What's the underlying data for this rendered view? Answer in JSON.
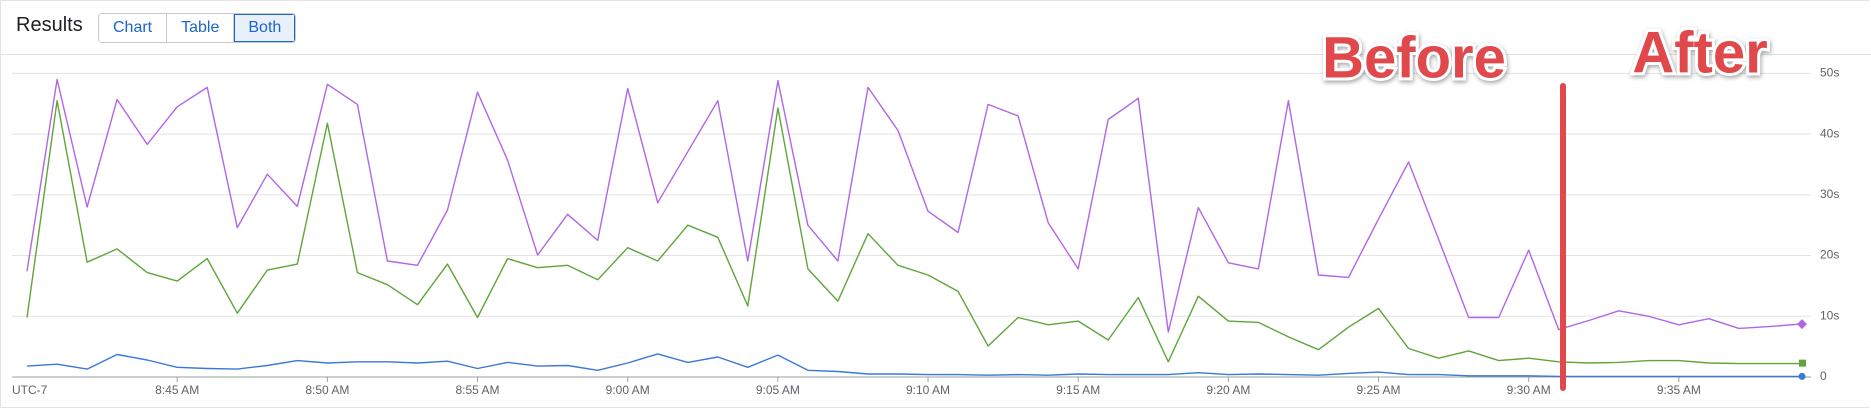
{
  "header": {
    "title": "Results",
    "tabs": [
      "Chart",
      "Table",
      "Both"
    ],
    "selected_tab": 2
  },
  "chart_data": {
    "type": "line",
    "timezone": "UTC-7",
    "annotations": [
      "Before",
      "After"
    ],
    "x": [
      520,
      521,
      522,
      523,
      524,
      525,
      526,
      527,
      528,
      529,
      530,
      531,
      532,
      533,
      534,
      535,
      536,
      537,
      538,
      539,
      540,
      541,
      542,
      543,
      544,
      545,
      546,
      547,
      548,
      549,
      550,
      551,
      552,
      553,
      554,
      555,
      556,
      557,
      558,
      559,
      560,
      561,
      562,
      563,
      564,
      565,
      566,
      567,
      568,
      569,
      570,
      571,
      572,
      573,
      574,
      575,
      576,
      577,
      578,
      579
    ],
    "xlim": [
      519.5,
      579.4
    ],
    "xticks": [
      {
        "value": 525,
        "label": "8:45 AM"
      },
      {
        "value": 530,
        "label": "8:50 AM"
      },
      {
        "value": 535,
        "label": "8:55 AM"
      },
      {
        "value": 540,
        "label": "9:00 AM"
      },
      {
        "value": 545,
        "label": "9:05 AM"
      },
      {
        "value": 550,
        "label": "9:10 AM"
      },
      {
        "value": 555,
        "label": "9:15 AM"
      },
      {
        "value": 560,
        "label": "9:20 AM"
      },
      {
        "value": 565,
        "label": "9:25 AM"
      },
      {
        "value": 570,
        "label": "9:30 AM"
      },
      {
        "value": 575,
        "label": "9:35 AM"
      }
    ],
    "ylim": [
      0,
      52.7
    ],
    "yticks": [
      0,
      {
        "value": 10,
        "label": "10s"
      },
      {
        "value": 20,
        "label": "20s"
      },
      {
        "value": 30,
        "label": "30s"
      },
      {
        "value": 40,
        "label": "40s"
      },
      {
        "value": 50,
        "label": "50s"
      }
    ],
    "grid": true,
    "series": [
      {
        "color": "#b266e6",
        "marker": "diamond",
        "values": [
          17.4,
          49,
          28,
          45.7,
          38.3,
          44.5,
          47.7,
          24.6,
          33.4,
          28.1,
          48.2,
          44.9,
          19.1,
          18.4,
          27.5,
          46.9,
          35.7,
          20.1,
          26.8,
          22.5,
          47.5,
          28.7,
          37.1,
          45.5,
          19.1,
          48.8,
          25,
          19.1,
          47.7,
          40.6,
          27.3,
          23.8,
          44.9,
          43,
          25.4,
          17.8,
          42.4,
          45.9,
          7.4,
          27.9,
          18.8,
          17.8,
          45.5,
          16.8,
          16.4,
          26,
          35.4,
          22.7,
          9.8,
          9.8,
          20.9,
          7.8,
          9.3,
          10.9,
          10,
          8.6,
          9.6,
          8,
          8.3,
          8.7
        ]
      },
      {
        "color": "#5fa53a",
        "marker": "square",
        "values": [
          9.8,
          45.5,
          18.9,
          21.1,
          17.2,
          15.8,
          19.5,
          10.5,
          17.6,
          18.6,
          41.8,
          17.2,
          15.2,
          11.9,
          18.6,
          9.8,
          19.5,
          18,
          18.4,
          16,
          21.3,
          19.1,
          25,
          23,
          11.7,
          44.3,
          17.8,
          12.5,
          23.6,
          18.4,
          16.8,
          14.1,
          5.1,
          9.8,
          8.6,
          9.2,
          6.1,
          13.1,
          2.5,
          13.3,
          9.2,
          9,
          6.6,
          4.5,
          8.2,
          11.3,
          4.7,
          3.1,
          4.3,
          2.7,
          3.1,
          2.5,
          2.3,
          2.4,
          2.7,
          2.7,
          2.3,
          2.2,
          2.2,
          2.2
        ]
      },
      {
        "color": "#3b78d8",
        "marker": "circle",
        "values": [
          1.8,
          2.1,
          1.3,
          3.7,
          2.8,
          1.6,
          1.4,
          1.3,
          1.9,
          2.7,
          2.3,
          2.5,
          2.5,
          2.3,
          2.6,
          1.4,
          2.4,
          1.8,
          1.9,
          1.1,
          2.3,
          3.8,
          2.4,
          3.3,
          1.6,
          3.6,
          1.1,
          0.9,
          0.5,
          0.5,
          0.4,
          0.4,
          0.3,
          0.4,
          0.3,
          0.5,
          0.4,
          0.4,
          0.4,
          0.7,
          0.4,
          0.5,
          0.4,
          0.3,
          0.6,
          0.8,
          0.4,
          0.4,
          0.2,
          0.2,
          0.2,
          0.1,
          0.1,
          0.1,
          0.1,
          0.1,
          0.1,
          0.1,
          0.1,
          0.1
        ]
      }
    ]
  }
}
